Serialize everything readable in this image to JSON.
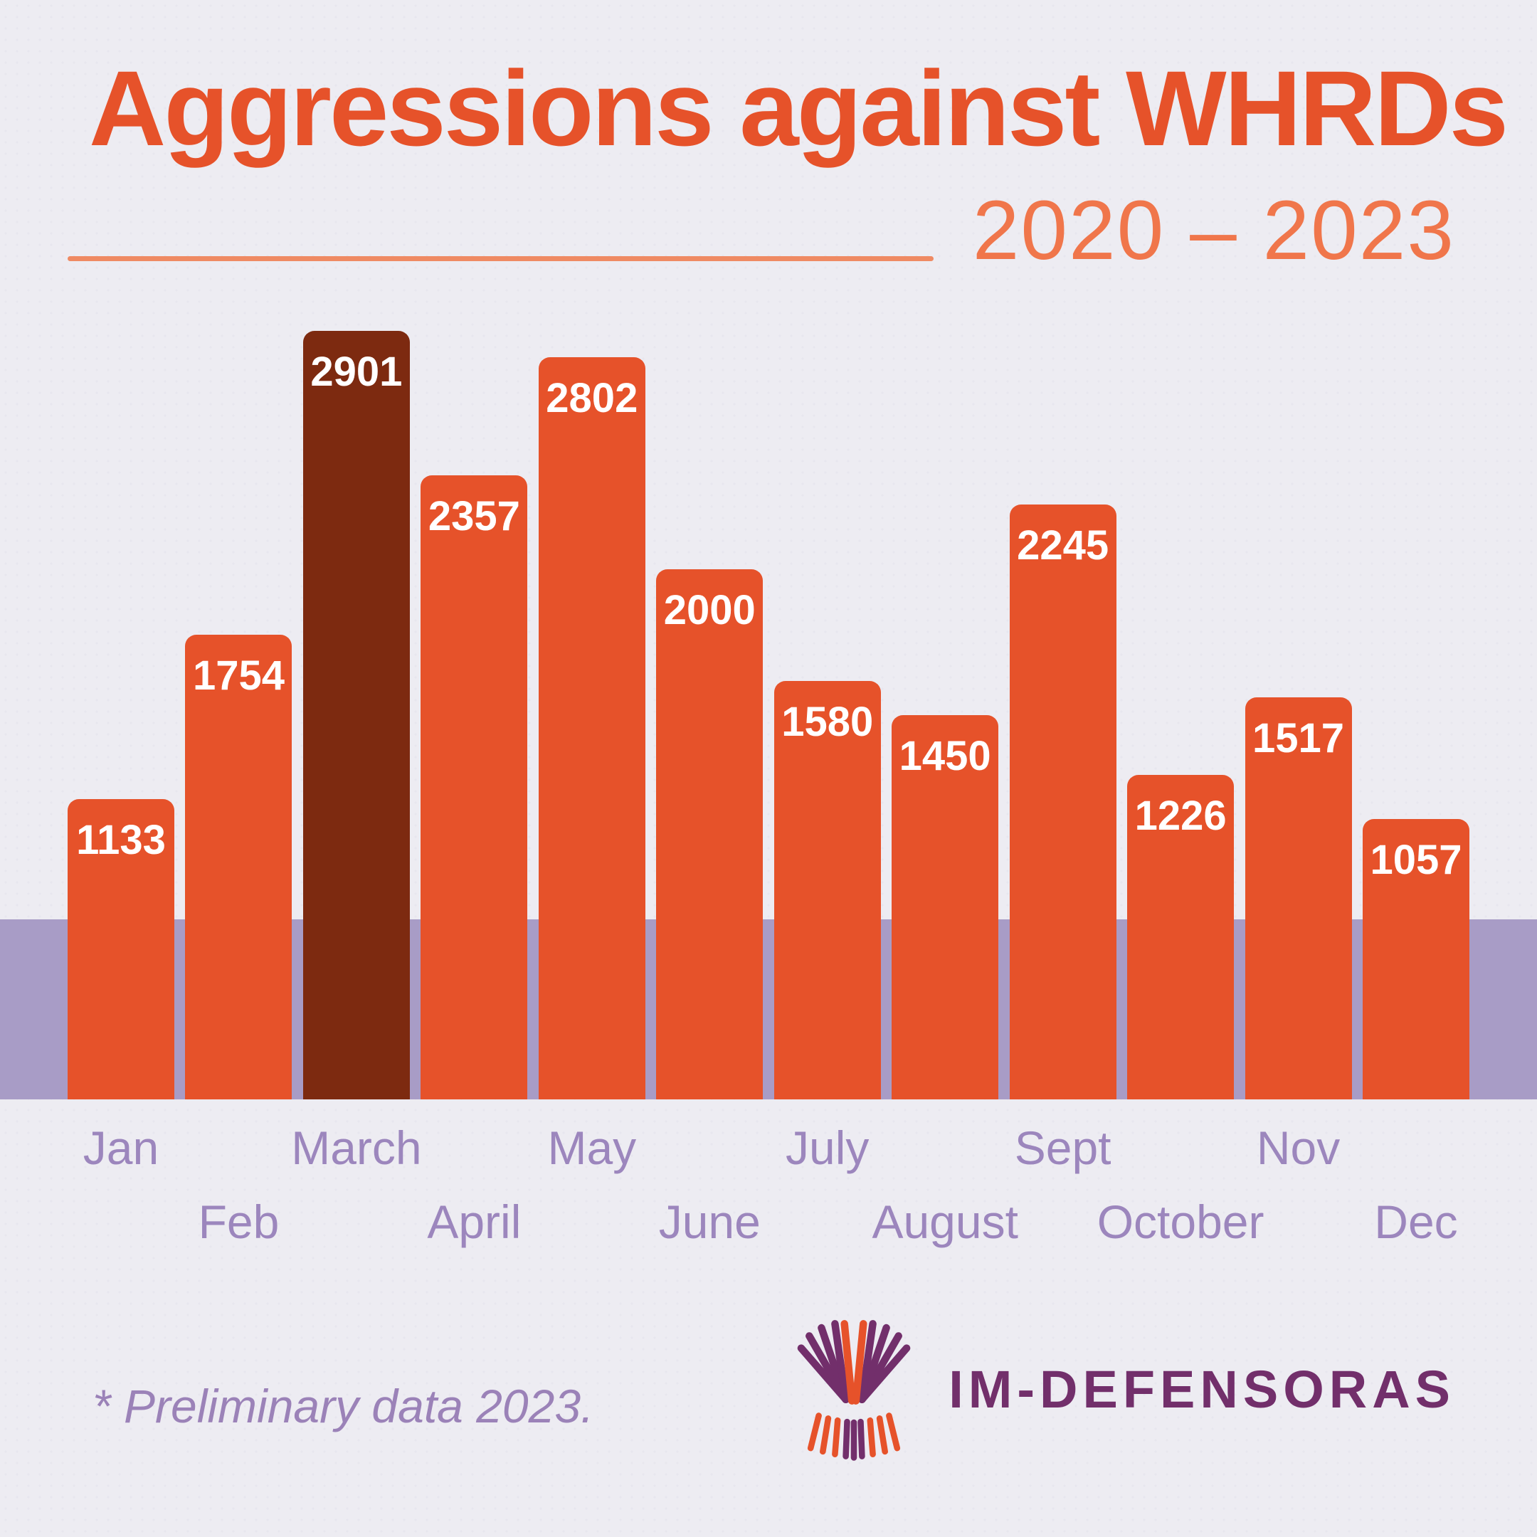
{
  "header": {
    "title": "Aggressions against WHRDs",
    "subtitle": "2020 – 2023"
  },
  "chart_data": {
    "type": "bar",
    "title": "Aggressions against WHRDs",
    "subtitle": "2020 – 2023",
    "categories": [
      "Jan",
      "Feb",
      "March",
      "April",
      "May",
      "June",
      "July",
      "August",
      "Sept",
      "October",
      "Nov",
      "Dec"
    ],
    "values": [
      1133,
      1754,
      2901,
      2357,
      2802,
      2000,
      1580,
      1450,
      2245,
      1226,
      1517,
      1057
    ],
    "ylim": [
      0,
      2901
    ],
    "highlight_index": 2,
    "value_labels": true,
    "grid": false,
    "legend": "none",
    "xlabel": "",
    "ylabel": ""
  },
  "footer": {
    "footnote": "* Preliminary data 2023.",
    "logo_text": "IM-DEFENSORAS"
  },
  "colors": {
    "background": "#edecf2",
    "title_orange": "#e6522a",
    "subtitle_orange": "#f0764b",
    "bar_orange": "#e6522a",
    "bar_highlight_maroon": "#7d2a10",
    "value_label_white": "#ffffff",
    "band_purple": "#a89cc6",
    "month_label_purple": "#9c86bd",
    "footnote_purple": "#9b82b8",
    "logo_plum": "#722f6b"
  }
}
